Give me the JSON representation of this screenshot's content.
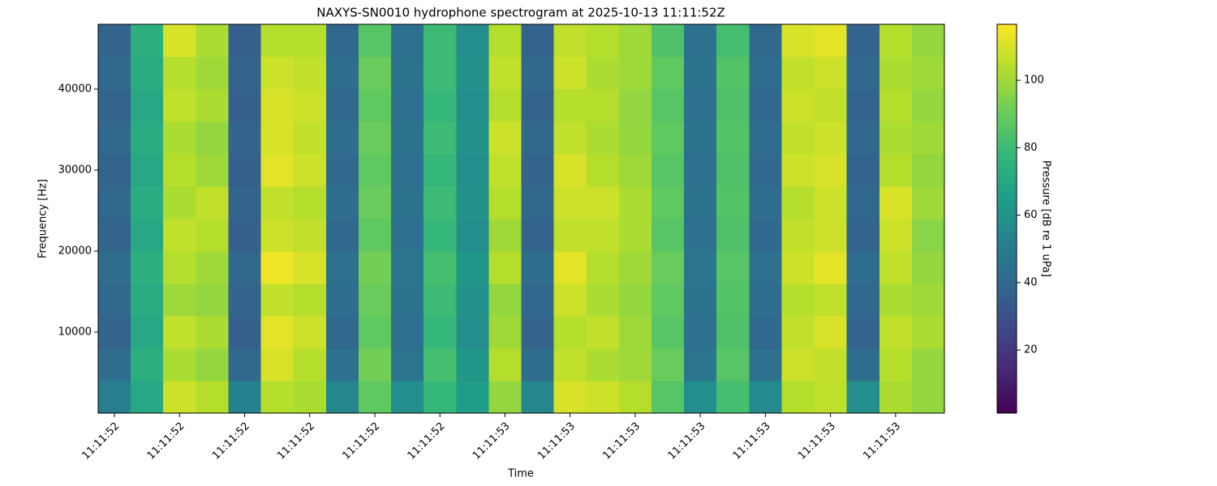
{
  "chart_data": {
    "type": "heatmap",
    "title": "NAXYS-SN0010 hydrophone spectrogram at 2025-10-13 11:11:52Z",
    "xlabel": "Time",
    "ylabel": "Frequency [Hz]",
    "colorbar_label": "Pressure [dB re 1 uPa]",
    "colormap": "viridis",
    "xlim": [
      -0.25,
      12.75
    ],
    "xticks": [
      {
        "value": 0,
        "label": "11:11:52"
      },
      {
        "value": 1,
        "label": "11:11:52"
      },
      {
        "value": 2,
        "label": "11:11:52"
      },
      {
        "value": 3,
        "label": "11:11:52"
      },
      {
        "value": 4,
        "label": "11:11:52"
      },
      {
        "value": 5,
        "label": "11:11:52"
      },
      {
        "value": 6,
        "label": "11:11:53"
      },
      {
        "value": 7,
        "label": "11:11:53"
      },
      {
        "value": 8,
        "label": "11:11:53"
      },
      {
        "value": 9,
        "label": "11:11:53"
      },
      {
        "value": 10,
        "label": "11:11:53"
      },
      {
        "value": 11,
        "label": "11:11:53"
      },
      {
        "value": 12,
        "label": "11:11:53"
      }
    ],
    "ylim": [
      0,
      48000
    ],
    "yticks": [
      10000,
      20000,
      30000,
      40000
    ],
    "clim": [
      1.3,
      116.6
    ],
    "cticks": [
      20,
      40,
      60,
      80,
      100
    ],
    "x": [
      0,
      0.5,
      1,
      1.5,
      2,
      2.5,
      3,
      3.5,
      4,
      4.5,
      5,
      5.5,
      6,
      6.5,
      7,
      7.5,
      8,
      8.5,
      9,
      9.5,
      10,
      10.5,
      11,
      11.5,
      12,
      12.5
    ],
    "y": [
      2000,
      6000,
      10000,
      14000,
      18000,
      22000,
      26000,
      30000,
      34000,
      38000,
      42000,
      46000
    ],
    "z": [
      [
        50,
        70,
        108,
        104,
        52,
        104,
        102,
        55,
        88,
        58,
        78,
        65,
        98,
        55,
        110,
        108,
        104,
        86,
        58,
        82,
        56,
        104,
        106,
        58,
        102,
        98
      ],
      [
        42,
        74,
        102,
        98,
        40,
        110,
        104,
        44,
        92,
        46,
        82,
        62,
        104,
        42,
        106,
        102,
        100,
        90,
        46,
        86,
        44,
        108,
        106,
        42,
        104,
        98
      ],
      [
        38,
        70,
        106,
        102,
        36,
        112,
        108,
        40,
        88,
        44,
        78,
        58,
        100,
        38,
        104,
        106,
        100,
        86,
        44,
        84,
        40,
        106,
        110,
        38,
        106,
        102
      ],
      [
        40,
        72,
        100,
        98,
        38,
        106,
        104,
        42,
        90,
        45,
        80,
        60,
        98,
        40,
        108,
        102,
        98,
        88,
        45,
        85,
        42,
        104,
        106,
        40,
        102,
        100
      ],
      [
        42,
        74,
        104,
        100,
        40,
        114,
        110,
        44,
        92,
        46,
        82,
        62,
        104,
        42,
        112,
        104,
        100,
        90,
        46,
        86,
        44,
        108,
        112,
        42,
        106,
        98
      ],
      [
        38,
        70,
        106,
        104,
        36,
        108,
        106,
        40,
        88,
        44,
        78,
        58,
        100,
        38,
        106,
        106,
        102,
        86,
        44,
        84,
        40,
        106,
        108,
        38,
        108,
        96
      ],
      [
        40,
        72,
        102,
        106,
        38,
        106,
        104,
        42,
        90,
        45,
        80,
        60,
        104,
        40,
        108,
        108,
        102,
        88,
        45,
        85,
        42,
        104,
        108,
        40,
        110,
        100
      ],
      [
        38,
        70,
        104,
        100,
        36,
        112,
        108,
        40,
        88,
        44,
        78,
        58,
        106,
        38,
        110,
        104,
        100,
        86,
        44,
        84,
        40,
        108,
        110,
        38,
        104,
        98
      ],
      [
        40,
        72,
        102,
        98,
        38,
        110,
        106,
        42,
        90,
        45,
        80,
        60,
        108,
        40,
        106,
        102,
        98,
        88,
        45,
        85,
        42,
        106,
        108,
        40,
        102,
        100
      ],
      [
        38,
        70,
        106,
        102,
        36,
        110,
        108,
        40,
        88,
        44,
        78,
        58,
        104,
        38,
        104,
        104,
        98,
        86,
        44,
        84,
        40,
        108,
        106,
        38,
        104,
        98
      ],
      [
        40,
        72,
        104,
        100,
        38,
        108,
        106,
        42,
        90,
        45,
        80,
        60,
        106,
        40,
        108,
        102,
        100,
        88,
        45,
        85,
        42,
        106,
        108,
        40,
        102,
        100
      ],
      [
        38,
        74,
        110,
        102,
        36,
        104,
        104,
        40,
        86,
        44,
        80,
        58,
        104,
        38,
        106,
        104,
        100,
        84,
        44,
        82,
        40,
        110,
        112,
        38,
        104,
        98
      ]
    ]
  }
}
